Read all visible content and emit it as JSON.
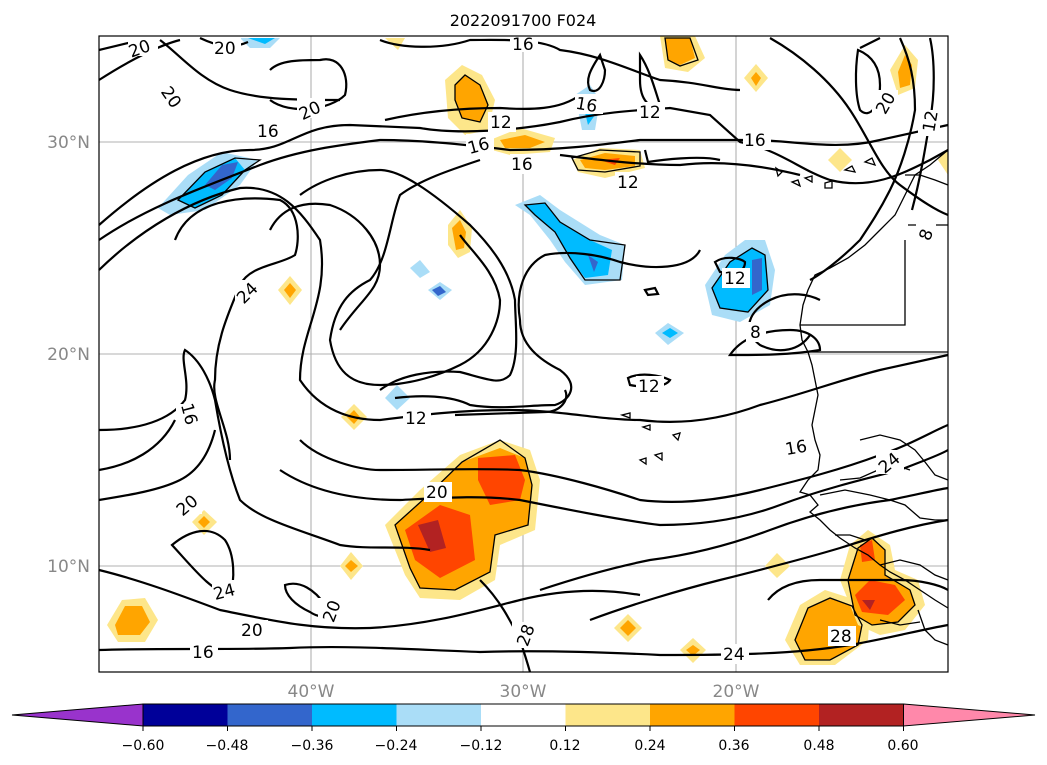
{
  "title": "2022091700 F024",
  "latitude_labels": [
    "30°N",
    "20°N",
    "10°N"
  ],
  "longitude_labels": [
    "40°W",
    "30°W",
    "20°W"
  ],
  "colorbar": {
    "tick_labels": [
      "−0.60",
      "−0.48",
      "−0.36",
      "−0.24",
      "−0.12",
      "0.12",
      "0.24",
      "0.36",
      "0.48",
      "0.60"
    ],
    "colors": [
      "#9933cc",
      "#000099",
      "#3366cc",
      "#00bbff",
      "#aaddf7",
      "#ffffff",
      "#fde68a",
      "#ffa500",
      "#ff4500",
      "#b22222",
      "#ff88aa"
    ]
  },
  "contour_labels": [
    "20",
    "20",
    "20",
    "20",
    "16",
    "16",
    "16",
    "16",
    "12",
    "12",
    "16",
    "12",
    "12",
    "16",
    "20",
    "12",
    "24",
    "8",
    "12",
    "12",
    "16",
    "16",
    "20",
    "20",
    "24",
    "20",
    "20",
    "28",
    "28",
    "16",
    "24",
    "24",
    "8"
  ]
}
